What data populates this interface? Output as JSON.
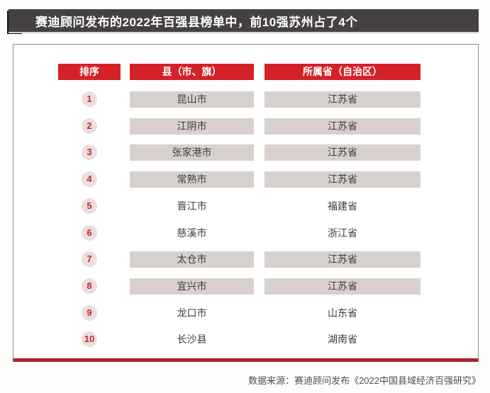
{
  "title": {
    "text": "赛迪顾问发布的2022年百强县榜单中，前10强苏州占了4个"
  },
  "colors": {
    "title_bar_bg": "#454041",
    "title_accent": "#141414",
    "header_red": "#d42127",
    "highlight_bar": "#d8d0cd",
    "rank_circle_bg": "#eadfdc",
    "rank_number_red": "#c9252c",
    "bottom_rule_red": "#a8242c",
    "panel_border_gray": "#8f8f8f"
  },
  "table": {
    "headers": [
      "排序",
      "县（市、旗）",
      "所属省（自治区）"
    ],
    "rows": [
      {
        "rank": "1",
        "county": "昆山市",
        "province": "江苏省",
        "highlight": true
      },
      {
        "rank": "2",
        "county": "江阴市",
        "province": "江苏省",
        "highlight": true
      },
      {
        "rank": "3",
        "county": "张家港市",
        "province": "江苏省",
        "highlight": true
      },
      {
        "rank": "4",
        "county": "常熟市",
        "province": "江苏省",
        "highlight": true
      },
      {
        "rank": "5",
        "county": "晋江市",
        "province": "福建省",
        "highlight": false
      },
      {
        "rank": "6",
        "county": "慈溪市",
        "province": "浙江省",
        "highlight": false
      },
      {
        "rank": "7",
        "county": "太仓市",
        "province": "江苏省",
        "highlight": true
      },
      {
        "rank": "8",
        "county": "宜兴市",
        "province": "江苏省",
        "highlight": true
      },
      {
        "rank": "9",
        "county": "龙口市",
        "province": "山东省",
        "highlight": false
      },
      {
        "rank": "10",
        "county": "长沙县",
        "province": "湖南省",
        "highlight": false
      }
    ]
  },
  "source": {
    "text": "数据来源：赛迪顾问发布《2022中国县域经济百强研究》"
  }
}
